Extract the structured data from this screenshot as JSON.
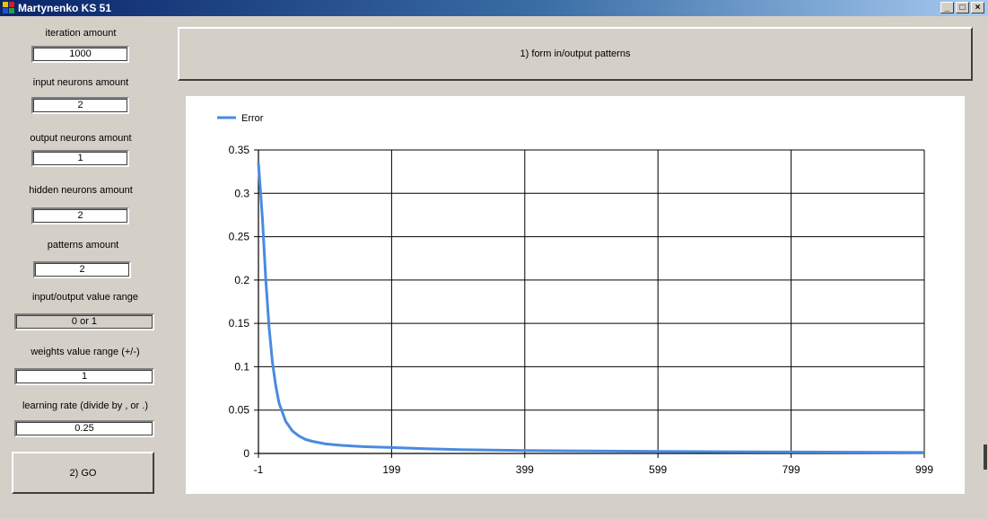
{
  "window": {
    "title": "Martynenko KS 51"
  },
  "params": [
    {
      "label": "iteration amount",
      "value": "1000"
    },
    {
      "label": "input neurons amount",
      "value": "2"
    },
    {
      "label": "output neurons amount",
      "value": "1"
    },
    {
      "label": "hidden neurons amount",
      "value": "2"
    },
    {
      "label": "patterns amount",
      "value": "2"
    },
    {
      "label": "input/output value range",
      "value": "0 or 1"
    },
    {
      "label": "weights value range (+/-)",
      "value": "1"
    },
    {
      "label": "learning rate (divide by , or .)",
      "value": "0.25"
    }
  ],
  "buttons": {
    "form_patterns": "1) form in/output patterns",
    "go": "2) GO"
  },
  "colors": {
    "series": "#4a8ae0",
    "grid": "#000000"
  },
  "chart_data": {
    "type": "line",
    "title": "",
    "xlabel": "",
    "ylabel": "",
    "legend": {
      "position": "top-left",
      "entries": [
        "Error"
      ]
    },
    "grid": true,
    "xlim": [
      -1,
      999
    ],
    "ylim": [
      0,
      0.35
    ],
    "xticks": [
      "-1",
      "199",
      "399",
      "599",
      "799",
      "999"
    ],
    "yticks": [
      "0",
      "0.05",
      "0.1",
      "0.15",
      "0.2",
      "0.25",
      "0.3",
      "0.35"
    ],
    "series": [
      {
        "name": "Error",
        "x": [
          -1,
          5,
          10,
          15,
          20,
          25,
          30,
          40,
          50,
          60,
          70,
          80,
          100,
          120,
          140,
          160,
          199,
          250,
          300,
          399,
          500,
          599,
          700,
          799,
          900,
          999
        ],
        "y": [
          0.335,
          0.27,
          0.2,
          0.145,
          0.105,
          0.078,
          0.058,
          0.037,
          0.026,
          0.02,
          0.016,
          0.014,
          0.011,
          0.0095,
          0.0085,
          0.0078,
          0.0068,
          0.0055,
          0.0045,
          0.0034,
          0.0028,
          0.0024,
          0.002,
          0.0017,
          0.0014,
          0.0011
        ]
      }
    ]
  }
}
